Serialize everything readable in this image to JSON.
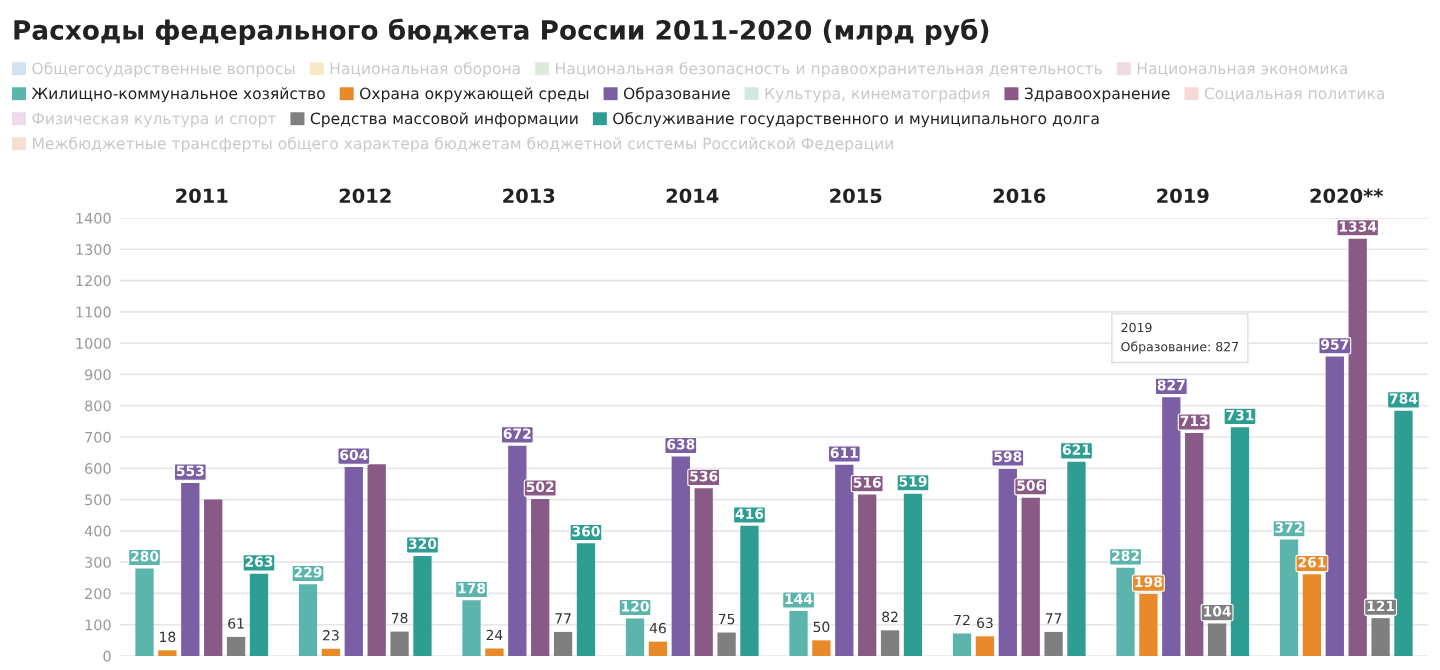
{
  "chart_data": {
    "type": "bar",
    "title": "Расходы федерального бюджета России 2011-2020 (млрд руб)",
    "categories": [
      "2011",
      "2012",
      "2013",
      "2014",
      "2015",
      "2016",
      "2019",
      "2020**"
    ],
    "ylim": [
      0,
      1400
    ],
    "yticks": [
      0,
      100,
      200,
      300,
      400,
      500,
      600,
      700,
      800,
      900,
      1000,
      1100,
      1200,
      1300,
      1400
    ],
    "grid": "y",
    "legend": "top",
    "annotations": [
      "2019\nОбразование: 827"
    ],
    "series": [
      {
        "name": "Общегосударственные вопросы",
        "color": "#d3e2ef",
        "values": [
          null,
          null,
          null,
          null,
          null,
          null,
          null,
          null
        ]
      },
      {
        "name": "Национальная оборона",
        "color": "#f7e9c6",
        "values": [
          null,
          null,
          null,
          null,
          null,
          null,
          null,
          null
        ]
      },
      {
        "name": "Национальная безопасность и правоохранительная деятельность",
        "color": "#dcebd9",
        "values": [
          null,
          null,
          null,
          null,
          null,
          null,
          null,
          null
        ]
      },
      {
        "name": "Национальная экономика",
        "color": "#eedbe3",
        "values": [
          null,
          null,
          null,
          null,
          null,
          null,
          null,
          null
        ]
      },
      {
        "name": "Жилищно-коммунальное хозяйство",
        "color": "#5bb5ad",
        "values": [
          280,
          229,
          178,
          120,
          144,
          72,
          282,
          372
        ],
        "value_labels": [
          "280",
          "229",
          "178",
          "120",
          "144",
          "72",
          "282",
          "372"
        ]
      },
      {
        "name": "Охрана окружающей среды",
        "color": "#e8892a",
        "values": [
          18,
          23,
          24,
          46,
          50,
          63,
          198,
          261
        ],
        "value_labels": [
          "18",
          "23",
          "24",
          "46",
          "50",
          "63",
          "198",
          "261"
        ]
      },
      {
        "name": "Образование",
        "color": "#7b5fa5",
        "values": [
          553,
          604,
          672,
          638,
          611,
          598,
          827,
          957
        ],
        "value_labels": [
          "553",
          "604",
          "672",
          "638",
          "611",
          "598",
          "827",
          "957"
        ]
      },
      {
        "name": "Культура, кинематография",
        "color": "#d2e8e4",
        "values": [
          null,
          null,
          null,
          null,
          null,
          null,
          null,
          null
        ]
      },
      {
        "name": "Здравоохранение",
        "color": "#8a5a86",
        "values": [
          500,
          613,
          502,
          536,
          516,
          506,
          713,
          1334
        ],
        "value_labels": [
          null,
          null,
          "502",
          "536",
          "516",
          "506",
          "713",
          "1334"
        ]
      },
      {
        "name": "Социальная политика",
        "color": "#f6d8d6",
        "values": [
          null,
          null,
          null,
          null,
          null,
          null,
          null,
          null
        ]
      },
      {
        "name": "Физическая культура и спорт",
        "color": "#eddbed",
        "values": [
          null,
          null,
          null,
          null,
          null,
          null,
          null,
          null
        ]
      },
      {
        "name": "Средства массовой информации",
        "color": "#7f7f7f",
        "values": [
          61,
          78,
          77,
          75,
          82,
          77,
          104,
          121
        ],
        "value_labels": [
          "61",
          "78",
          "77",
          "75",
          "82",
          "77",
          "104",
          "121"
        ]
      },
      {
        "name": "Обслуживание государственного и муниципального долга",
        "color": "#2e9e93",
        "values": [
          263,
          320,
          360,
          416,
          519,
          621,
          731,
          784
        ],
        "value_labels": [
          "263",
          "320",
          "360",
          "416",
          "519",
          "621",
          "731",
          "784"
        ]
      },
      {
        "name": "Межбюджетные трансферты общего характера бюджетам бюджетной системы Российской Федерации",
        "color": "#f4e0d3",
        "values": [
          null,
          null,
          null,
          null,
          null,
          null,
          null,
          null
        ]
      }
    ]
  }
}
